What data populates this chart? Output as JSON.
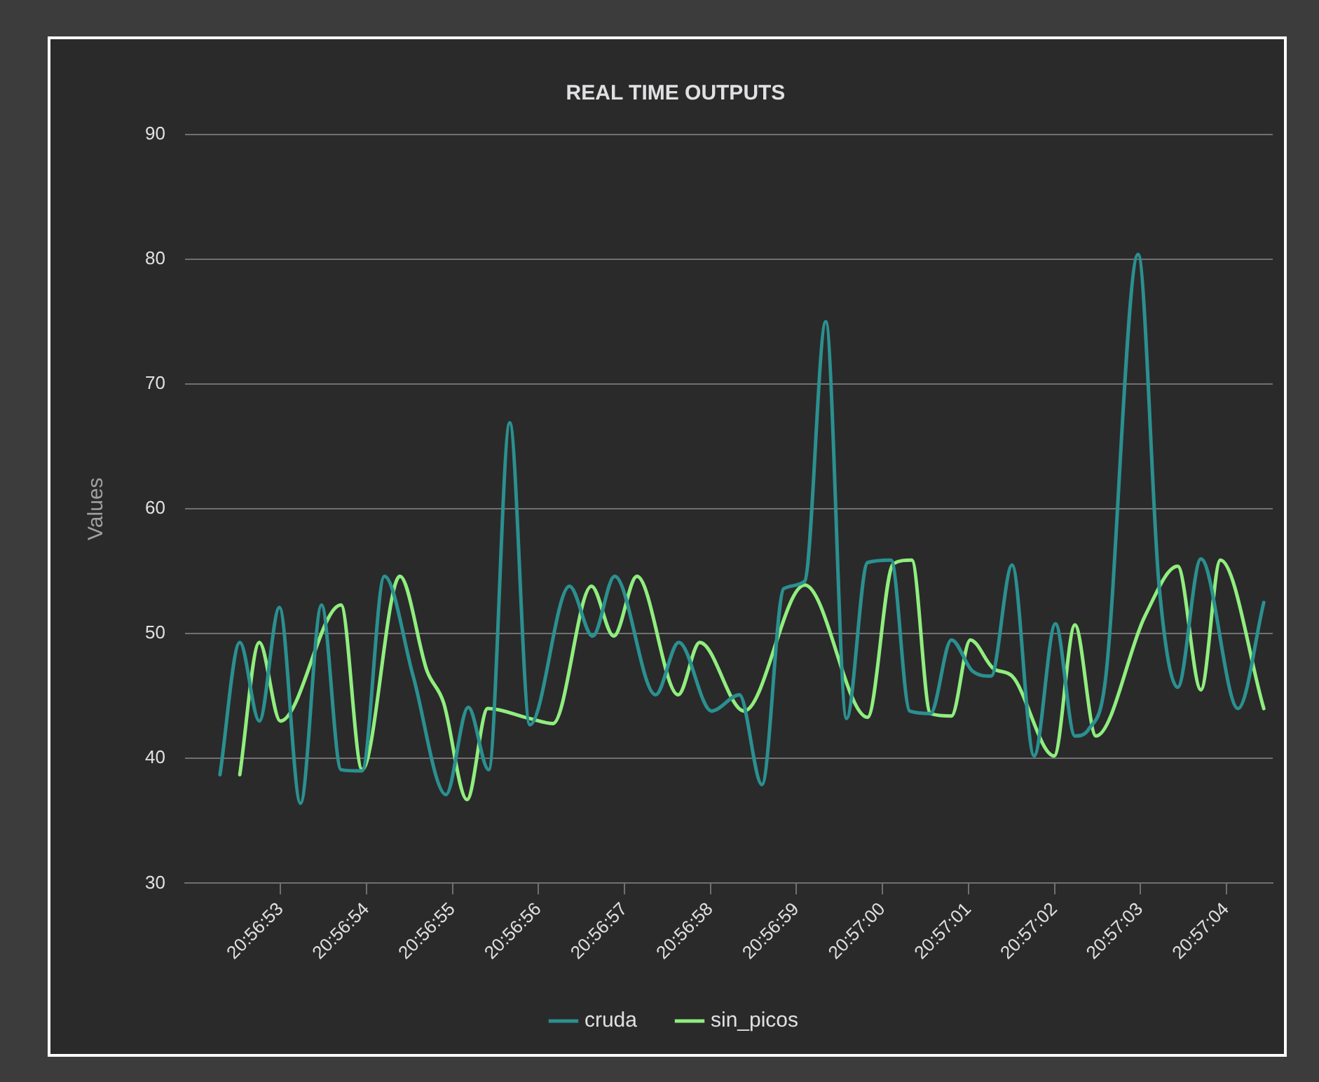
{
  "chart_data": {
    "type": "line",
    "title": "REAL TIME OUTPUTS",
    "ylabel": "Values",
    "xlim": [
      20.947747,
      20.951261
    ],
    "ylim": [
      30,
      90
    ],
    "xticks": [
      {
        "value": 20.948056,
        "label": "20:56:53"
      },
      {
        "value": 20.948333,
        "label": "20:56:54"
      },
      {
        "value": 20.948611,
        "label": "20:56:55"
      },
      {
        "value": 20.948889,
        "label": "20:56:56"
      },
      {
        "value": 20.949167,
        "label": "20:56:57"
      },
      {
        "value": 20.949444,
        "label": "20:56:58"
      },
      {
        "value": 20.949722,
        "label": "20:56:59"
      },
      {
        "value": 20.95,
        "label": "20:57:00"
      },
      {
        "value": 20.950278,
        "label": "20:57:01"
      },
      {
        "value": 20.950556,
        "label": "20:57:02"
      },
      {
        "value": 20.950833,
        "label": "20:57:03"
      },
      {
        "value": 20.951111,
        "label": "20:57:04"
      }
    ],
    "yticks": [
      30,
      40,
      50,
      60,
      70,
      80,
      90
    ],
    "grid": "y",
    "legend": "bottom",
    "marker": "none",
    "line_style": "solid",
    "series": [
      {
        "name": "cruda",
        "color": "#2b908f",
        "x": [
          20.94786,
          20.947924,
          20.947987,
          20.948052,
          20.94812,
          20.948188,
          20.948251,
          20.948319,
          20.948391,
          20.948484,
          20.94859,
          20.948662,
          20.948728,
          20.948796,
          20.948861,
          20.948989,
          20.949064,
          20.949135,
          20.949267,
          20.949342,
          20.949448,
          20.949538,
          20.949611,
          20.949681,
          20.949749,
          20.949817,
          20.949884,
          20.949952,
          20.950028,
          20.950088,
          20.950155,
          20.950223,
          20.950291,
          20.950351,
          20.950419,
          20.95049,
          20.950559,
          20.950622,
          20.950668,
          20.95072,
          20.950826,
          20.950894,
          20.950954,
          20.951029,
          20.951149,
          20.951232
        ],
        "values": [
          38.7,
          49.3,
          43.0,
          52.1,
          36.4,
          52.3,
          39.1,
          39.0,
          54.6,
          46.6,
          37.1,
          44.1,
          39.1,
          66.9,
          42.7,
          53.8,
          49.8,
          54.6,
          45.1,
          49.3,
          43.8,
          45.1,
          37.9,
          53.6,
          54.2,
          75.0,
          43.2,
          55.7,
          55.9,
          43.8,
          43.6,
          49.5,
          47.0,
          46.6,
          55.5,
          40.2,
          50.8,
          41.8,
          42.4,
          46.2,
          80.4,
          53.8,
          45.7,
          56.0,
          44.0,
          52.5
        ]
      },
      {
        "name": "sin_picos",
        "color": "#90ee7e",
        "x": [
          20.947924,
          20.947987,
          20.948055,
          20.948251,
          20.948319,
          20.948441,
          20.948529,
          20.948582,
          20.948658,
          20.948725,
          20.948861,
          20.948936,
          20.94906,
          20.949132,
          20.949207,
          20.94934,
          20.94941,
          20.949553,
          20.949749,
          20.949952,
          20.950035,
          20.950095,
          20.950155,
          20.950223,
          20.950284,
          20.950359,
          20.950419,
          20.950555,
          20.950622,
          20.95069,
          20.950848,
          20.950954,
          20.951029,
          20.951092,
          20.951232
        ],
        "values": [
          38.7,
          49.3,
          43.0,
          52.3,
          39.1,
          54.6,
          47.0,
          44.5,
          36.7,
          44.0,
          43.2,
          42.8,
          53.8,
          49.8,
          54.6,
          45.1,
          49.3,
          43.8,
          53.9,
          43.3,
          55.6,
          55.9,
          43.6,
          43.4,
          49.5,
          47.2,
          46.6,
          40.2,
          50.7,
          41.8,
          51.4,
          55.4,
          45.5,
          55.9,
          44.0
        ]
      }
    ]
  }
}
